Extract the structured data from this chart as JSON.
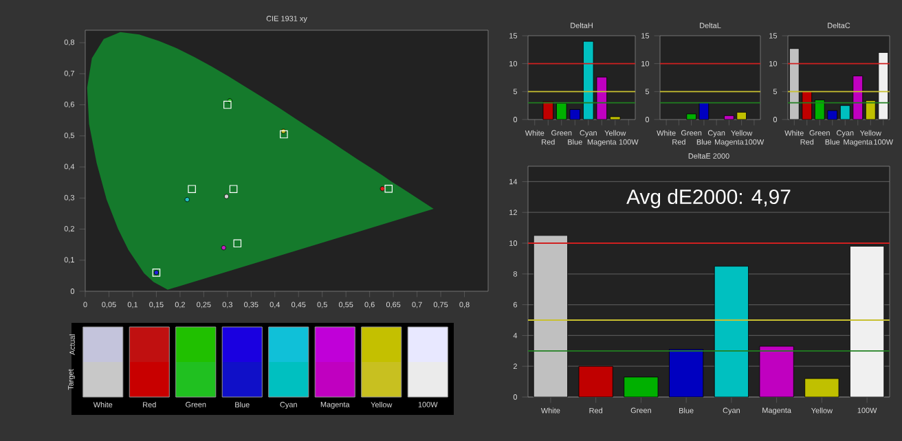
{
  "chart_data": [
    {
      "type": "scatter",
      "title": "CIE 1931 xy",
      "xlim": [
        0,
        0.85
      ],
      "ylim": [
        0,
        0.84
      ],
      "xticks": [
        0,
        {
          "value": 0.05,
          "label": "0,05"
        },
        {
          "value": 0.1,
          "label": "0,1"
        },
        {
          "value": 0.15,
          "label": "0,15"
        },
        {
          "value": 0.2,
          "label": "0,2"
        },
        {
          "value": 0.25,
          "label": "0,25"
        },
        {
          "value": 0.3,
          "label": "0,3"
        },
        {
          "value": 0.35,
          "label": "0,35"
        },
        {
          "value": 0.4,
          "label": "0,4"
        },
        {
          "value": 0.45,
          "label": "0,45"
        },
        {
          "value": 0.5,
          "label": "0,5"
        },
        {
          "value": 0.55,
          "label": "0,55"
        },
        {
          "value": 0.6,
          "label": "0,6"
        },
        {
          "value": 0.65,
          "label": "0,65"
        },
        {
          "value": 0.7,
          "label": "0,7"
        },
        {
          "value": 0.75,
          "label": "0,75"
        },
        {
          "value": 0.8,
          "label": "0,8"
        }
      ],
      "yticks": [
        0,
        {
          "value": 0.1,
          "label": "0,1"
        },
        {
          "value": 0.2,
          "label": "0,2"
        },
        {
          "value": 0.3,
          "label": "0,3"
        },
        {
          "value": 0.4,
          "label": "0,4"
        },
        {
          "value": 0.5,
          "label": "0,5"
        },
        {
          "value": 0.6,
          "label": "0,6"
        },
        {
          "value": 0.7,
          "label": "0,7"
        },
        {
          "value": 0.8,
          "label": "0,8"
        }
      ],
      "series": [
        {
          "type": "area",
          "color": "#157a2c",
          "x": [
            0.174,
            0.144,
            0.124,
            0.091,
            0.069,
            0.045,
            0.024,
            0.008,
            0.004,
            0.014,
            0.039,
            0.074,
            0.114,
            0.155,
            0.193,
            0.23,
            0.266,
            0.302,
            0.337,
            0.373,
            0.409,
            0.444,
            0.479,
            0.513,
            0.545,
            0.575,
            0.603,
            0.627,
            0.648,
            0.666,
            0.68,
            0.735
          ],
          "values": [
            0.005,
            0.03,
            0.058,
            0.133,
            0.201,
            0.295,
            0.413,
            0.538,
            0.655,
            0.75,
            0.812,
            0.834,
            0.826,
            0.806,
            0.782,
            0.754,
            0.724,
            0.692,
            0.659,
            0.625,
            0.59,
            0.555,
            0.52,
            0.487,
            0.454,
            0.424,
            0.397,
            0.373,
            0.351,
            0.334,
            0.32,
            0.265
          ]
        },
        {
          "type": "scatter",
          "marker": "circle",
          "colors": [
            "#d0d0d0",
            "#e02020",
            "#20c020",
            "#2020e0",
            "#20c0c0",
            "#c020c0",
            "#c0c020"
          ],
          "x": [
            0.298,
            0.627,
            0.305,
            0.15,
            0.215,
            0.292,
            0.418
          ],
          "values": [
            0.305,
            0.33,
            0.613,
            0.06,
            0.295,
            0.14,
            0.515
          ]
        },
        {
          "type": "scatter",
          "marker": "square",
          "color": "#ffffff",
          "x": [
            0.3127,
            0.64,
            0.3,
            0.15,
            0.225,
            0.321,
            0.419
          ],
          "values": [
            0.329,
            0.33,
            0.6,
            0.06,
            0.329,
            0.154,
            0.505
          ]
        }
      ]
    },
    {
      "type": "other",
      "categories": [
        "White",
        "Red",
        "Green",
        "Blue",
        "Cyan",
        "Magenta",
        "Yellow",
        "100W"
      ],
      "y_categories": [
        "Actual",
        "Target"
      ],
      "colors": [
        [
          "#c4c4dc",
          "#c01010",
          "#20c000",
          "#1a00e0",
          "#10c0d8",
          "#c000d8",
          "#c4c000",
          "#e8e8ff"
        ],
        [
          "#c8c8c8",
          "#c80000",
          "#20c020",
          "#1010c8",
          "#00c0c0",
          "#c000c0",
          "#c8c020",
          "#ebebeb"
        ]
      ]
    },
    {
      "type": "bar",
      "title": "DeltaH",
      "categories": [
        "White",
        "Red",
        "Green",
        "Blue",
        "Cyan",
        "Magenta",
        "Yellow",
        "100W"
      ],
      "values": [
        0,
        3.2,
        2.9,
        1.8,
        14,
        7.6,
        0.5,
        0
      ],
      "colors": [
        "#c0c0c0",
        "#c00000",
        "#00b000",
        "#0000c0",
        "#00c0c0",
        "#c000c0",
        "#c0c000",
        "#f0f0f0"
      ],
      "ylim": [
        0,
        15
      ],
      "yticks": [
        0,
        5,
        10,
        15
      ],
      "ref_lines": [
        {
          "axis": "y",
          "value": 10,
          "color": "#d02020"
        },
        {
          "axis": "y",
          "value": 5,
          "color": "#c8c030"
        },
        {
          "axis": "y",
          "value": 3,
          "color": "#208020"
        }
      ]
    },
    {
      "type": "bar",
      "title": "DeltaL",
      "categories": [
        "White",
        "Red",
        "Green",
        "Blue",
        "Cyan",
        "Magenta",
        "Yellow",
        "100W"
      ],
      "values": [
        0,
        0,
        1,
        3,
        0,
        0.7,
        1.3,
        0
      ],
      "colors": [
        "#c0c0c0",
        "#c00000",
        "#00b000",
        "#0000c0",
        "#00c0c0",
        "#c000c0",
        "#c0c000",
        "#f0f0f0"
      ],
      "ylim": [
        0,
        15
      ],
      "yticks": [
        0,
        5,
        10,
        15
      ],
      "ref_lines": [
        {
          "axis": "y",
          "value": 10,
          "color": "#d02020"
        },
        {
          "axis": "y",
          "value": 5,
          "color": "#c8c030"
        },
        {
          "axis": "y",
          "value": 3,
          "color": "#208020"
        }
      ]
    },
    {
      "type": "bar",
      "title": "DeltaC",
      "categories": [
        "White",
        "Red",
        "Green",
        "Blue",
        "Cyan",
        "Magenta",
        "Yellow",
        "100W"
      ],
      "values": [
        12.7,
        5.1,
        3.5,
        1.6,
        2.5,
        7.8,
        3.4,
        12
      ],
      "colors": [
        "#c0c0c0",
        "#c00000",
        "#00b000",
        "#0000c0",
        "#00c0c0",
        "#c000c0",
        "#c0c000",
        "#f0f0f0"
      ],
      "ylim": [
        0,
        15
      ],
      "yticks": [
        0,
        5,
        10,
        15
      ],
      "ref_lines": [
        {
          "axis": "y",
          "value": 10,
          "color": "#d02020"
        },
        {
          "axis": "y",
          "value": 5,
          "color": "#c8c030"
        },
        {
          "axis": "y",
          "value": 3,
          "color": "#208020"
        }
      ]
    },
    {
      "type": "bar",
      "title": "DeltaE 2000",
      "categories": [
        "White",
        "Red",
        "Green",
        "Blue",
        "Cyan",
        "Magenta",
        "Yellow",
        "100W"
      ],
      "values": [
        10.5,
        2,
        1.3,
        3.1,
        8.5,
        3.3,
        1.2,
        9.8
      ],
      "colors": [
        "#c0c0c0",
        "#c00000",
        "#00b000",
        "#0000c0",
        "#00c0c0",
        "#c000c0",
        "#c0c000",
        "#f0f0f0"
      ],
      "ylim": [
        0,
        15
      ],
      "yticks": [
        0,
        2,
        4,
        6,
        8,
        10,
        12,
        14
      ],
      "grid": "y",
      "annotations": [
        "Avg dE2000: 4,97"
      ],
      "ref_lines": [
        {
          "axis": "y",
          "value": 10,
          "color": "#d02020"
        },
        {
          "axis": "y",
          "value": 5,
          "color": "#c8c030"
        },
        {
          "axis": "y",
          "value": 3,
          "color": "#208020"
        }
      ]
    }
  ]
}
